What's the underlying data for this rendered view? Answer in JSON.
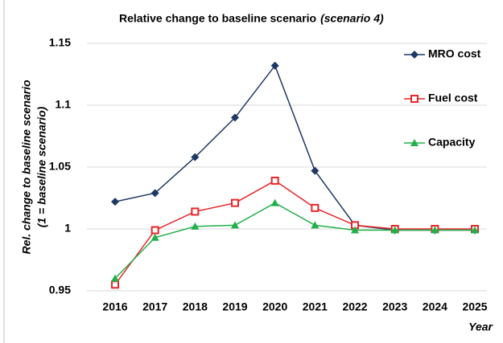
{
  "chart_data": {
    "type": "line",
    "title": "Relative change to baseline scenario",
    "title_note": "(scenario 4)",
    "ylabel": [
      "Rel. change to baseline scenario",
      "(1 = baseline scenario)"
    ],
    "xlabel": "Year",
    "categories": [
      "2016",
      "2017",
      "2018",
      "2019",
      "2020",
      "2021",
      "2022",
      "2023",
      "2024",
      "2025"
    ],
    "series": [
      {
        "name": "MRO cost",
        "color": "#1f3864",
        "marker": "diamond",
        "values": [
          1.022,
          1.029,
          1.058,
          1.09,
          1.132,
          1.047,
          1.003,
          0.999,
          0.999,
          0.999
        ]
      },
      {
        "name": "Fuel cost",
        "color": "#e8262a",
        "marker": "square",
        "values": [
          0.955,
          0.999,
          1.014,
          1.021,
          1.039,
          1.017,
          1.003,
          1.0,
          1.0,
          1.0
        ]
      },
      {
        "name": "Capacity",
        "color": "#22b04b",
        "marker": "triangle",
        "values": [
          0.96,
          0.993,
          1.002,
          1.003,
          1.021,
          1.003,
          0.999,
          0.999,
          0.999,
          0.999
        ]
      }
    ],
    "ylim": [
      0.95,
      1.15
    ],
    "yticks": [
      0.95,
      1,
      1.05,
      1.1,
      1.15
    ],
    "grid": true,
    "legend": "upper right"
  }
}
